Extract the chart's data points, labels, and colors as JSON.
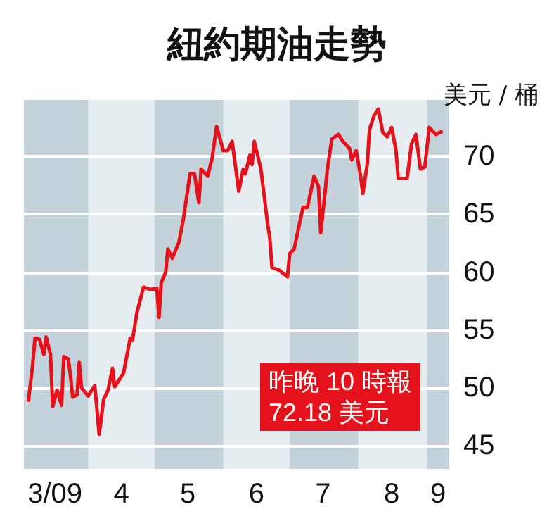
{
  "chart_data": {
    "type": "line",
    "title": "紐約期油走勢",
    "ylabel": "美元 / 桶",
    "annotations": [
      "昨晚 10 時報\n72.18 美元"
    ],
    "x": [
      "2009-03-05",
      "2009-03-07",
      "2009-03-08",
      "2009-03-10",
      "2009-03-12",
      "2009-03-13",
      "2009-03-15",
      "2009-03-16",
      "2009-03-18",
      "2009-03-20",
      "2009-03-21",
      "2009-03-23",
      "2009-03-24",
      "2009-03-25",
      "2009-03-27",
      "2009-03-28",
      "2009-03-29",
      "2009-04-01",
      "2009-04-04",
      "2009-04-06",
      "2009-04-08",
      "2009-04-10",
      "2009-04-12",
      "2009-04-13",
      "2009-04-17",
      "2009-04-20",
      "2009-04-21",
      "2009-04-23",
      "2009-04-26",
      "2009-04-29",
      "2009-05-02",
      "2009-05-03",
      "2009-05-04",
      "2009-05-06",
      "2009-05-07",
      "2009-05-09",
      "2009-05-12",
      "2009-05-14",
      "2009-05-17",
      "2009-05-19",
      "2009-05-21",
      "2009-05-22",
      "2009-05-25",
      "2009-05-27",
      "2009-05-29",
      "2009-06-01",
      "2009-06-03",
      "2009-06-05",
      "2009-06-08",
      "2009-06-10",
      "2009-06-11",
      "2009-06-13",
      "2009-06-14",
      "2009-06-15",
      "2009-06-18",
      "2009-06-21",
      "2009-06-22",
      "2009-06-23",
      "2009-06-26",
      "2009-06-30",
      "2009-07-01",
      "2009-07-03",
      "2009-07-05",
      "2009-07-07",
      "2009-07-09",
      "2009-07-11",
      "2009-07-12",
      "2009-07-14",
      "2009-07-15",
      "2009-07-17",
      "2009-07-18",
      "2009-07-20",
      "2009-07-23",
      "2009-07-25",
      "2009-07-28",
      "2009-07-29",
      "2009-07-31",
      "2009-08-02",
      "2009-08-03",
      "2009-08-05",
      "2009-08-06",
      "2009-08-08",
      "2009-08-10",
      "2009-08-12",
      "2009-08-14",
      "2009-08-16",
      "2009-08-18",
      "2009-08-19",
      "2009-08-23",
      "2009-08-25",
      "2009-08-27",
      "2009-08-29",
      "2009-08-31",
      "2009-09-02",
      "2009-09-05",
      "2009-09-08"
    ],
    "series": [
      {
        "color": "#e5121b",
        "values": [
          48.8,
          52.1,
          54.3,
          54.2,
          52.9,
          54.4,
          52.9,
          48.4,
          49.8,
          48.5,
          52.7,
          52.5,
          51.1,
          49.2,
          49.4,
          52.2,
          50.0,
          49.3,
          50.2,
          46.0,
          49.0,
          49.8,
          51.7,
          50.1,
          51.3,
          54.3,
          54.1,
          56.5,
          58.7,
          58.5,
          58.6,
          56.1,
          59.1,
          60.0,
          62.0,
          61.2,
          62.6,
          64.6,
          68.5,
          68.5,
          66.0,
          68.9,
          68.3,
          69.9,
          72.6,
          70.5,
          70.5,
          71.3,
          67.0,
          68.9,
          68.5,
          70.1,
          69.3,
          71.3,
          68.9,
          64.2,
          63.0,
          60.4,
          60.2,
          59.6,
          61.6,
          62.0,
          63.8,
          65.6,
          65.6,
          67.4,
          68.3,
          67.4,
          63.4,
          67.0,
          68.9,
          71.5,
          71.9,
          71.3,
          70.7,
          69.7,
          70.5,
          68.3,
          66.8,
          69.3,
          72.3,
          73.5,
          74.1,
          72.1,
          71.7,
          72.5,
          70.5,
          68.1,
          68.1,
          71.1,
          71.9,
          68.9,
          69.1,
          72.5,
          71.9,
          72.2
        ]
      }
    ],
    "xlim": [
      "2009-03-03",
      "2009-09-11"
    ],
    "xticks": [
      {
        "value": "2009-03-17",
        "label": "3/09"
      },
      {
        "value": "2009-04-16",
        "label": "4"
      },
      {
        "value": "2009-05-16",
        "label": "5"
      },
      {
        "value": "2009-06-16",
        "label": "6"
      },
      {
        "value": "2009-07-16",
        "label": "7"
      },
      {
        "value": "2009-08-16",
        "label": "8"
      },
      {
        "value": "2009-09-06",
        "label": "9"
      }
    ],
    "ylim": [
      43,
      75
    ],
    "yticks": [
      45,
      50,
      55,
      60,
      65,
      70,
      {
        "value": 75,
        "label": null
      }
    ],
    "bands": [
      {
        "axis": "x",
        "from": "2009-03-03",
        "to": "2009-04-01",
        "color": "#c3d2db"
      },
      {
        "axis": "x",
        "from": "2009-05-01",
        "to": "2009-06-01",
        "color": "#c3d2db"
      },
      {
        "axis": "x",
        "from": "2009-07-01",
        "to": "2009-08-01",
        "color": "#c3d2db"
      },
      {
        "axis": "x",
        "from": "2009-09-01",
        "to": "2009-09-11",
        "color": "#c3d2db"
      }
    ],
    "grid": "y",
    "marker": "none",
    "line_style": "solid"
  }
}
